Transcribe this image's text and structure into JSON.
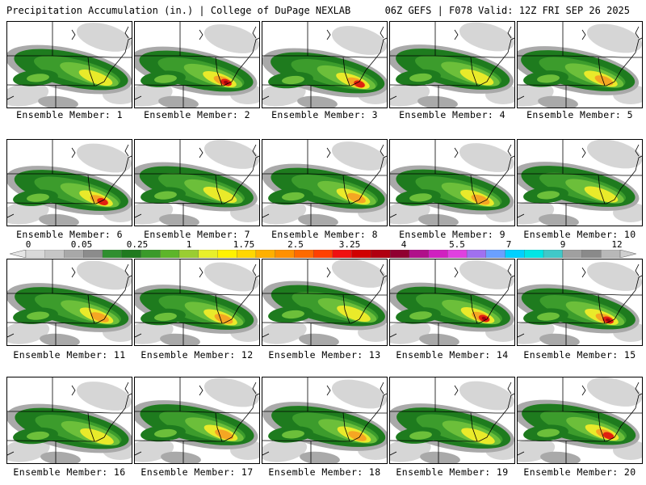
{
  "header": {
    "title_left": "Precipitation Accumulation (in.) | College of DuPage NEXLAB",
    "title_right": "06Z GEFS | F078 Valid: 12Z FRI SEP 26 2025"
  },
  "panels": [
    {
      "label": "Ensemble Member: 1"
    },
    {
      "label": "Ensemble Member: 2"
    },
    {
      "label": "Ensemble Member: 3"
    },
    {
      "label": "Ensemble Member: 4"
    },
    {
      "label": "Ensemble Member: 5"
    },
    {
      "label": "Ensemble Member: 6"
    },
    {
      "label": "Ensemble Member: 7"
    },
    {
      "label": "Ensemble Member: 8"
    },
    {
      "label": "Ensemble Member: 9"
    },
    {
      "label": "Ensemble Member: 10"
    },
    {
      "label": "Ensemble Member: 11"
    },
    {
      "label": "Ensemble Member: 12"
    },
    {
      "label": "Ensemble Member: 13"
    },
    {
      "label": "Ensemble Member: 14"
    },
    {
      "label": "Ensemble Member: 15"
    },
    {
      "label": "Ensemble Member: 16"
    },
    {
      "label": "Ensemble Member: 17"
    },
    {
      "label": "Ensemble Member: 18"
    },
    {
      "label": "Ensemble Member: 19"
    },
    {
      "label": "Ensemble Member: 20"
    }
  ],
  "legend": {
    "ticks": [
      "0",
      "0.05",
      "0.25",
      "1",
      "1.75",
      "2.5",
      "3.25",
      "4",
      "5.5",
      "7",
      "9",
      "12"
    ],
    "colors": [
      "#d9d9d9",
      "#c6c6c6",
      "#a8a8a8",
      "#8c8c8c",
      "#2f8f2f",
      "#1f7a1f",
      "#3a9a2a",
      "#5db52a",
      "#9acd32",
      "#e8ef2a",
      "#fff200",
      "#ffd700",
      "#ffb000",
      "#ff9000",
      "#ff6a00",
      "#ff4000",
      "#f01010",
      "#d00000",
      "#b00010",
      "#900030",
      "#b0108a",
      "#d020c0",
      "#e040e0",
      "#a070f0",
      "#6aa0ff",
      "#00d0ff",
      "#00e5e5",
      "#40c8c8",
      "#a0a0a0",
      "#8a8a8a",
      "#b8b8b8"
    ]
  },
  "colors": {
    "gray_light": "#d6d6d6",
    "gray": "#a9a9a9",
    "green_dark": "#1e7b1e",
    "green": "#3c9c2c",
    "green_light": "#6cbf3a",
    "yellow": "#e9ea2a",
    "orange": "#f5a623",
    "red": "#e02010",
    "darkred": "#a00010"
  }
}
